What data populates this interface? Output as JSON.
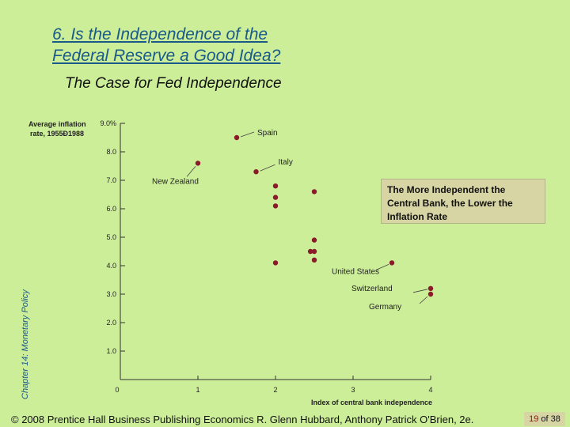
{
  "slide": {
    "title_line1": "6. Is the Independence of the",
    "title_line2": "Federal Reserve a Good Idea?",
    "subtitle": "The Case for Fed Independence",
    "side_label": "Chapter 14: Monetary Policy",
    "callout": "The More Independent the Central Bank, the Lower the Inflation Rate",
    "footer": "© 2008 Prentice Hall Business Publishing   Economics  R. Glenn Hubbard, Anthony Patrick O'Brien, 2e.",
    "page_current": "19",
    "page_of": "of",
    "page_total": "38"
  },
  "chart_data": {
    "type": "scatter",
    "xlabel": "Index of central bank independence",
    "ylabel_line1": "Average inflation",
    "ylabel_line2": "rate, 1955Ð1988",
    "xlim": [
      0,
      4
    ],
    "ylim": [
      0,
      9
    ],
    "x_ticks": [
      "0",
      "1",
      "2",
      "3",
      "4"
    ],
    "y_ticks": [
      "1.0",
      "2.0",
      "3.0",
      "4.0",
      "5.0",
      "6.0",
      "7.0",
      "8.0",
      "9.0%"
    ],
    "grid": false,
    "marker_color": "#8B1A2A",
    "points": [
      {
        "x": 1.0,
        "y": 7.6,
        "label": "New Zealand"
      },
      {
        "x": 1.5,
        "y": 8.5,
        "label": "Spain"
      },
      {
        "x": 1.75,
        "y": 7.3,
        "label": "Italy"
      },
      {
        "x": 2.0,
        "y": 6.8,
        "label": ""
      },
      {
        "x": 2.0,
        "y": 6.4,
        "label": ""
      },
      {
        "x": 2.0,
        "y": 6.1,
        "label": ""
      },
      {
        "x": 2.0,
        "y": 4.1,
        "label": ""
      },
      {
        "x": 2.5,
        "y": 6.6,
        "label": ""
      },
      {
        "x": 2.5,
        "y": 4.9,
        "label": ""
      },
      {
        "x": 2.5,
        "y": 4.5,
        "label": ""
      },
      {
        "x": 2.45,
        "y": 4.5,
        "label": ""
      },
      {
        "x": 2.5,
        "y": 4.2,
        "label": ""
      },
      {
        "x": 3.5,
        "y": 4.1,
        "label": "United States"
      },
      {
        "x": 4.0,
        "y": 3.2,
        "label": "Switzerland"
      },
      {
        "x": 4.0,
        "y": 3.0,
        "label": "Germany"
      }
    ]
  }
}
